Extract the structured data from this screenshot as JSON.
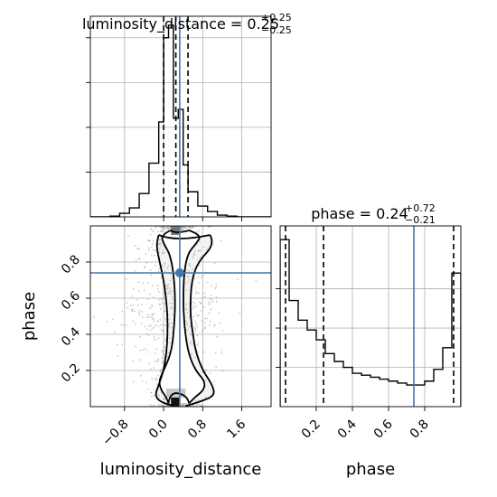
{
  "chart_data": [
    {
      "type": "histogram",
      "panel": "luminosity_distance marginal",
      "title": {
        "main": "luminosity_distance = 0.25",
        "upper": "+0.25",
        "lower": "−0.25"
      },
      "x_range": [
        -1.5,
        2.2
      ],
      "bin_edges": [
        -1.5,
        -1.3,
        -1.1,
        -0.9,
        -0.7,
        -0.5,
        -0.3,
        -0.1,
        0.0,
        0.1,
        0.2,
        0.3,
        0.4,
        0.5,
        0.7,
        0.9,
        1.1,
        1.3,
        1.5,
        1.7,
        1.9,
        2.2
      ],
      "counts": [
        0,
        0,
        0.004,
        0.02,
        0.05,
        0.13,
        0.3,
        0.53,
        1.0,
        1.07,
        0.55,
        0.6,
        0.29,
        0.14,
        0.06,
        0.03,
        0.01,
        0.004,
        0,
        0,
        0
      ],
      "median": 0.25,
      "quantiles": [
        0.0,
        0.25,
        0.5
      ],
      "truth": 0.33,
      "colors": {
        "line": "#000000",
        "truth": "#4477aa",
        "grid": "#b0b0b0"
      }
    },
    {
      "type": "scatter",
      "panel": "phase vs luminosity_distance 2D",
      "x_range": [
        -1.5,
        2.2
      ],
      "y_range": [
        0.0,
        1.0
      ],
      "xlabel": "luminosity_distance",
      "ylabel": "phase",
      "x_ticks": [
        "−0.8",
        "0.0",
        "0.8",
        "1.6"
      ],
      "x_tick_values": [
        -0.8,
        0.0,
        0.8,
        1.6
      ],
      "y_ticks": [
        "0.2",
        "0.4",
        "0.6",
        "0.8"
      ],
      "y_tick_values": [
        0.2,
        0.4,
        0.6,
        0.8
      ],
      "truth": {
        "x": 0.33,
        "y": 0.74
      },
      "contours": [
        {
          "level": "outer",
          "left": [
            [
              0.95,
              -0.1
            ],
            [
              0.9,
              -0.16
            ],
            [
              0.8,
              -0.08
            ],
            [
              0.7,
              0.0
            ],
            [
              0.6,
              0.05
            ],
            [
              0.5,
              0.08
            ],
            [
              0.4,
              0.08
            ],
            [
              0.3,
              0.06
            ],
            [
              0.2,
              0.0
            ],
            [
              0.12,
              -0.1
            ],
            [
              0.06,
              -0.18
            ],
            [
              0.025,
              -0.06
            ],
            [
              0.004,
              0.2
            ]
          ],
          "right": [
            [
              0.95,
              0.95
            ],
            [
              0.9,
              1.05
            ],
            [
              0.8,
              0.7
            ],
            [
              0.7,
              0.58
            ],
            [
              0.6,
              0.55
            ],
            [
              0.5,
              0.55
            ],
            [
              0.4,
              0.6
            ],
            [
              0.3,
              0.66
            ],
            [
              0.2,
              0.8
            ],
            [
              0.12,
              1.0
            ],
            [
              0.06,
              1.05
            ],
            [
              0.025,
              0.72
            ],
            [
              0.004,
              0.45
            ]
          ]
        },
        {
          "level": "inner",
          "left": [
            [
              0.975,
              0.14
            ],
            [
              0.95,
              -0.05
            ],
            [
              0.9,
              0.0
            ],
            [
              0.85,
              0.12
            ],
            [
              0.75,
              0.2
            ],
            [
              0.6,
              0.24
            ],
            [
              0.45,
              0.22
            ],
            [
              0.3,
              0.16
            ],
            [
              0.2,
              0.0
            ],
            [
              0.14,
              -0.1
            ],
            [
              0.09,
              -0.05
            ],
            [
              0.055,
              0.05
            ],
            [
              0.018,
              0.1
            ]
          ],
          "right": [
            [
              0.975,
              0.52
            ],
            [
              0.95,
              0.78
            ],
            [
              0.9,
              0.66
            ],
            [
              0.85,
              0.5
            ],
            [
              0.75,
              0.42
            ],
            [
              0.6,
              0.4
            ],
            [
              0.45,
              0.42
            ],
            [
              0.3,
              0.5
            ],
            [
              0.2,
              0.65
            ],
            [
              0.14,
              0.85
            ],
            [
              0.09,
              0.82
            ],
            [
              0.055,
              0.65
            ],
            [
              0.018,
              0.52
            ]
          ]
        }
      ],
      "colors": {
        "points": "#9a9a9a",
        "contour": "#000000",
        "truth": "#4477aa",
        "grid": "#b0b0b0"
      }
    },
    {
      "type": "histogram",
      "panel": "phase marginal",
      "title": {
        "main": "phase = 0.24",
        "upper": "+0.72",
        "lower": "−0.21"
      },
      "x_range": [
        0.0,
        1.0
      ],
      "bin_edges": [
        0.0,
        0.05,
        0.1,
        0.15,
        0.2,
        0.25,
        0.3,
        0.35,
        0.4,
        0.45,
        0.5,
        0.55,
        0.6,
        0.65,
        0.7,
        0.75,
        0.8,
        0.85,
        0.9,
        0.95,
        1.0
      ],
      "counts": [
        0.85,
        0.54,
        0.44,
        0.39,
        0.34,
        0.27,
        0.23,
        0.2,
        0.17,
        0.16,
        0.15,
        0.14,
        0.13,
        0.12,
        0.11,
        0.11,
        0.13,
        0.19,
        0.3,
        0.68,
        0.0
      ],
      "median": 0.24,
      "quantiles": [
        0.03,
        0.24,
        0.96
      ],
      "truth": 0.74,
      "xlabel": "phase",
      "x_ticks": [
        "0.2",
        "0.4",
        "0.6",
        "0.8"
      ],
      "x_tick_values": [
        0.2,
        0.4,
        0.6,
        0.8
      ],
      "colors": {
        "line": "#000000",
        "truth": "#4477aa",
        "grid": "#b0b0b0"
      }
    }
  ]
}
